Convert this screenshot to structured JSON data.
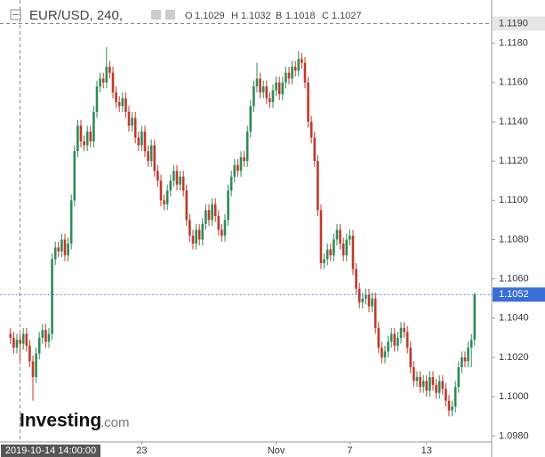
{
  "chart_data": {
    "type": "candlestick",
    "title": "EUR/USD, 240,",
    "ohlc_labels": [
      "O",
      "H",
      "B",
      "C"
    ],
    "up_color": "#2e8b57",
    "down_color": "#c0392b",
    "ylim": [
      1.0977,
      1.1202
    ],
    "yticks": [
      {
        "value": 1.098,
        "label": "1.0980"
      },
      {
        "value": 1.1,
        "label": "1.1000"
      },
      {
        "value": 1.102,
        "label": "1.1020"
      },
      {
        "value": 1.104,
        "label": "1.1040"
      },
      {
        "value": 1.106,
        "label": "1.1060"
      },
      {
        "value": 1.108,
        "label": "1.1080"
      },
      {
        "value": 1.11,
        "label": "1.1100"
      },
      {
        "value": 1.112,
        "label": "1.1120"
      },
      {
        "value": 1.114,
        "label": "1.1140"
      },
      {
        "value": 1.116,
        "label": "1.1160"
      },
      {
        "value": 1.118,
        "label": "1.1180"
      }
    ],
    "reference_line": {
      "value": 1.119,
      "label": "1.1190"
    },
    "last_price": {
      "value": 1.1052,
      "label": "1.1052"
    },
    "crosshair_index": 3,
    "logo": [
      "Investing",
      ".com"
    ],
    "categories": [
      null,
      null,
      null,
      "2019-10-14 14:00:00",
      null,
      null,
      null,
      null,
      null,
      null,
      null,
      null,
      null,
      null,
      null,
      null,
      null,
      null,
      null,
      null,
      null,
      null,
      null,
      null,
      null,
      null,
      null,
      null,
      null,
      null,
      null,
      null,
      null,
      null,
      null,
      null,
      null,
      null,
      null,
      null,
      null,
      "23",
      null,
      null,
      null,
      null,
      null,
      null,
      null,
      null,
      null,
      null,
      null,
      null,
      null,
      null,
      null,
      null,
      null,
      null,
      null,
      null,
      null,
      null,
      null,
      null,
      null,
      null,
      null,
      null,
      null,
      null,
      null,
      null,
      null,
      null,
      null,
      null,
      null,
      null,
      null,
      null,
      null,
      "Nov",
      null,
      null,
      null,
      null,
      null,
      null,
      null,
      null,
      null,
      null,
      null,
      null,
      null,
      null,
      null,
      null,
      null,
      null,
      null,
      null,
      null,
      null,
      "7",
      null,
      null,
      null,
      null,
      null,
      null,
      null,
      null,
      null,
      null,
      null,
      null,
      null,
      null,
      null,
      null,
      null,
      null,
      null,
      null,
      null,
      null,
      null,
      "13",
      null,
      null,
      null,
      null,
      null,
      null,
      null,
      null,
      null,
      null,
      null,
      null,
      null,
      null
    ],
    "ohlc": [
      [
        1.1032,
        1.1035,
        1.1027,
        1.103
      ],
      [
        1.103,
        1.1033,
        1.1022,
        1.1025
      ],
      [
        1.1025,
        1.1032,
        1.1022,
        1.1029
      ],
      [
        1.1029,
        1.1032,
        1.1018,
        1.1027
      ],
      [
        1.1027,
        1.1035,
        1.1024,
        1.1032
      ],
      [
        1.1032,
        1.1035,
        1.1023,
        1.1026
      ],
      [
        1.1026,
        1.1029,
        1.1015,
        1.1018
      ],
      [
        1.1018,
        1.1021,
        1.0998,
        1.101
      ],
      [
        1.101,
        1.1025,
        1.1007,
        1.1022
      ],
      [
        1.1022,
        1.1033,
        1.1019,
        1.103
      ],
      [
        1.103,
        1.1037,
        1.1027,
        1.1034
      ],
      [
        1.1034,
        1.1037,
        1.1025,
        1.1028
      ],
      [
        1.1028,
        1.1035,
        1.1025,
        1.1032
      ],
      [
        1.1032,
        1.1073,
        1.1029,
        1.107
      ],
      [
        1.107,
        1.1079,
        1.1067,
        1.1076
      ],
      [
        1.1076,
        1.1079,
        1.1071,
        1.1074
      ],
      [
        1.1074,
        1.1083,
        1.1071,
        1.108
      ],
      [
        1.108,
        1.1083,
        1.1069,
        1.1072
      ],
      [
        1.1072,
        1.1081,
        1.1069,
        1.1078
      ],
      [
        1.1078,
        1.1103,
        1.1075,
        1.11
      ],
      [
        1.11,
        1.1128,
        1.1097,
        1.1125
      ],
      [
        1.1125,
        1.1141,
        1.1122,
        1.1138
      ],
      [
        1.1138,
        1.1141,
        1.1127,
        1.113
      ],
      [
        1.113,
        1.1133,
        1.1125,
        1.1128
      ],
      [
        1.1128,
        1.1138,
        1.1125,
        1.1135
      ],
      [
        1.1135,
        1.1138,
        1.1127,
        1.113
      ],
      [
        1.113,
        1.1148,
        1.1127,
        1.1145
      ],
      [
        1.1145,
        1.1161,
        1.1142,
        1.1158
      ],
      [
        1.1158,
        1.1165,
        1.1155,
        1.1162
      ],
      [
        1.1162,
        1.1165,
        1.1157,
        1.116
      ],
      [
        1.116,
        1.1178,
        1.1157,
        1.1168
      ],
      [
        1.1168,
        1.1171,
        1.1162,
        1.1165
      ],
      [
        1.1165,
        1.1168,
        1.1152,
        1.1155
      ],
      [
        1.1155,
        1.1158,
        1.1147,
        1.115
      ],
      [
        1.115,
        1.1153,
        1.1145,
        1.1148
      ],
      [
        1.1148,
        1.1155,
        1.1145,
        1.1152
      ],
      [
        1.1152,
        1.1155,
        1.1142,
        1.1145
      ],
      [
        1.1145,
        1.1148,
        1.1135,
        1.1138
      ],
      [
        1.1138,
        1.1145,
        1.1135,
        1.1142
      ],
      [
        1.1142,
        1.1145,
        1.1129,
        1.1132
      ],
      [
        1.1132,
        1.1135,
        1.1125,
        1.1128
      ],
      [
        1.1128,
        1.1138,
        1.1125,
        1.1135
      ],
      [
        1.1135,
        1.1138,
        1.1122,
        1.1125
      ],
      [
        1.1125,
        1.1128,
        1.1117,
        1.112
      ],
      [
        1.112,
        1.1131,
        1.1117,
        1.1128
      ],
      [
        1.1128,
        1.1131,
        1.1112,
        1.1115
      ],
      [
        1.1115,
        1.1118,
        1.1107,
        1.111
      ],
      [
        1.111,
        1.1113,
        1.1097,
        1.11
      ],
      [
        1.11,
        1.1103,
        1.1095,
        1.1098
      ],
      [
        1.1098,
        1.1108,
        1.1095,
        1.1105
      ],
      [
        1.1105,
        1.1113,
        1.1102,
        1.111
      ],
      [
        1.111,
        1.1118,
        1.1107,
        1.1115
      ],
      [
        1.1115,
        1.1118,
        1.1105,
        1.1108
      ],
      [
        1.1108,
        1.1115,
        1.1105,
        1.1112
      ],
      [
        1.1112,
        1.1115,
        1.1102,
        1.1105
      ],
      [
        1.1105,
        1.1108,
        1.1087,
        1.109
      ],
      [
        1.109,
        1.1093,
        1.1079,
        1.1082
      ],
      [
        1.1082,
        1.1085,
        1.1075,
        1.1078
      ],
      [
        1.1078,
        1.1088,
        1.1075,
        1.1085
      ],
      [
        1.1085,
        1.1088,
        1.1077,
        1.108
      ],
      [
        1.108,
        1.1091,
        1.1077,
        1.1088
      ],
      [
        1.1088,
        1.1098,
        1.1085,
        1.1095
      ],
      [
        1.1095,
        1.1098,
        1.1087,
        1.109
      ],
      [
        1.109,
        1.1101,
        1.1087,
        1.1098
      ],
      [
        1.1098,
        1.1101,
        1.1089,
        1.1092
      ],
      [
        1.1092,
        1.1095,
        1.1082,
        1.1085
      ],
      [
        1.1085,
        1.1088,
        1.1079,
        1.1082
      ],
      [
        1.1082,
        1.1093,
        1.1079,
        1.109
      ],
      [
        1.109,
        1.1108,
        1.1087,
        1.1105
      ],
      [
        1.1105,
        1.1115,
        1.1102,
        1.1112
      ],
      [
        1.1112,
        1.1121,
        1.1109,
        1.1118
      ],
      [
        1.1118,
        1.1121,
        1.1112,
        1.1115
      ],
      [
        1.1115,
        1.1125,
        1.1112,
        1.1122
      ],
      [
        1.1122,
        1.1125,
        1.1117,
        1.112
      ],
      [
        1.112,
        1.1138,
        1.1117,
        1.1135
      ],
      [
        1.1135,
        1.1151,
        1.1132,
        1.1148
      ],
      [
        1.1148,
        1.1161,
        1.1145,
        1.1158
      ],
      [
        1.1158,
        1.117,
        1.1155,
        1.1162
      ],
      [
        1.1162,
        1.1165,
        1.1152,
        1.1155
      ],
      [
        1.1155,
        1.1161,
        1.1152,
        1.1158
      ],
      [
        1.1158,
        1.1161,
        1.1149,
        1.1152
      ],
      [
        1.1152,
        1.1155,
        1.1147,
        1.115
      ],
      [
        1.115,
        1.1159,
        1.1147,
        1.1156
      ],
      [
        1.1156,
        1.1163,
        1.1153,
        1.116
      ],
      [
        1.116,
        1.1163,
        1.1151,
        1.1154
      ],
      [
        1.1154,
        1.1163,
        1.1151,
        1.116
      ],
      [
        1.116,
        1.1168,
        1.1157,
        1.1165
      ],
      [
        1.1165,
        1.1168,
        1.1159,
        1.1162
      ],
      [
        1.1162,
        1.1171,
        1.1159,
        1.1168
      ],
      [
        1.1168,
        1.1171,
        1.1163,
        1.1166
      ],
      [
        1.1166,
        1.1176,
        1.1163,
        1.1172
      ],
      [
        1.1172,
        1.1175,
        1.1167,
        1.117
      ],
      [
        1.117,
        1.1173,
        1.1157,
        1.116
      ],
      [
        1.116,
        1.1163,
        1.1137,
        1.114
      ],
      [
        1.114,
        1.1143,
        1.1129,
        1.1132
      ],
      [
        1.1132,
        1.1135,
        1.1117,
        1.112
      ],
      [
        1.112,
        1.1123,
        1.1092,
        1.1095
      ],
      [
        1.1095,
        1.1098,
        1.1065,
        1.1068
      ],
      [
        1.1068,
        1.1073,
        1.1065,
        1.107
      ],
      [
        1.107,
        1.1078,
        1.1067,
        1.1075
      ],
      [
        1.1075,
        1.1078,
        1.1069,
        1.1072
      ],
      [
        1.1072,
        1.1083,
        1.1069,
        1.108
      ],
      [
        1.108,
        1.1088,
        1.1077,
        1.1085
      ],
      [
        1.1085,
        1.1088,
        1.1075,
        1.1078
      ],
      [
        1.1078,
        1.1081,
        1.1069,
        1.1072
      ],
      [
        1.1072,
        1.1083,
        1.1069,
        1.108
      ],
      [
        1.108,
        1.1085,
        1.1077,
        1.1082
      ],
      [
        1.1082,
        1.1085,
        1.1062,
        1.1065
      ],
      [
        1.1065,
        1.1068,
        1.1052,
        1.1055
      ],
      [
        1.1055,
        1.1058,
        1.1045,
        1.1048
      ],
      [
        1.1048,
        1.1053,
        1.1045,
        1.105
      ],
      [
        1.105,
        1.1055,
        1.1047,
        1.1052
      ],
      [
        1.1052,
        1.1055,
        1.1043,
        1.1046
      ],
      [
        1.1046,
        1.1053,
        1.1043,
        1.105
      ],
      [
        1.105,
        1.1053,
        1.1032,
        1.1035
      ],
      [
        1.1035,
        1.1038,
        1.1022,
        1.1025
      ],
      [
        1.1025,
        1.1028,
        1.1017,
        1.102
      ],
      [
        1.102,
        1.1026,
        1.1017,
        1.1023
      ],
      [
        1.1023,
        1.1031,
        1.102,
        1.1028
      ],
      [
        1.1028,
        1.1035,
        1.1025,
        1.1032
      ],
      [
        1.1032,
        1.1035,
        1.1023,
        1.1026
      ],
      [
        1.1026,
        1.1033,
        1.1023,
        1.103
      ],
      [
        1.103,
        1.1038,
        1.1027,
        1.1035
      ],
      [
        1.1035,
        1.1038,
        1.103,
        1.1033
      ],
      [
        1.1033,
        1.1036,
        1.1022,
        1.1025
      ],
      [
        1.1025,
        1.1028,
        1.1012,
        1.1015
      ],
      [
        1.1015,
        1.1018,
        1.1005,
        1.1008
      ],
      [
        1.1008,
        1.1013,
        1.1005,
        1.101
      ],
      [
        1.101,
        1.1013,
        1.1002,
        1.1005
      ],
      [
        1.1005,
        1.1011,
        1.1002,
        1.1008
      ],
      [
        1.1008,
        1.1011,
        1.1,
        1.1003
      ],
      [
        1.1003,
        1.1013,
        1.1,
        1.101
      ],
      [
        1.101,
        1.1013,
        1.1003,
        1.1006
      ],
      [
        1.1006,
        1.1009,
        1.0999,
        1.1002
      ],
      [
        1.1002,
        1.1011,
        1.0999,
        1.1008
      ],
      [
        1.1008,
        1.1011,
        1.1001,
        1.1004
      ],
      [
        1.1004,
        1.1007,
        1.0995,
        1.0998
      ],
      [
        1.0998,
        1.1001,
        1.099,
        1.0993
      ],
      [
        1.0993,
        1.0998,
        1.099,
        1.0995
      ],
      [
        1.0995,
        1.1008,
        1.0992,
        1.1005
      ],
      [
        1.1005,
        1.1018,
        1.1002,
        1.1015
      ],
      [
        1.1015,
        1.1023,
        1.1012,
        1.102
      ],
      [
        1.102,
        1.1023,
        1.1015,
        1.1018
      ],
      [
        1.1018,
        1.1028,
        1.1015,
        1.1025
      ],
      [
        1.1025,
        1.1032,
        1.1015,
        1.1029
      ],
      [
        1.1029,
        1.1053,
        1.1026,
        1.1052
      ]
    ]
  }
}
